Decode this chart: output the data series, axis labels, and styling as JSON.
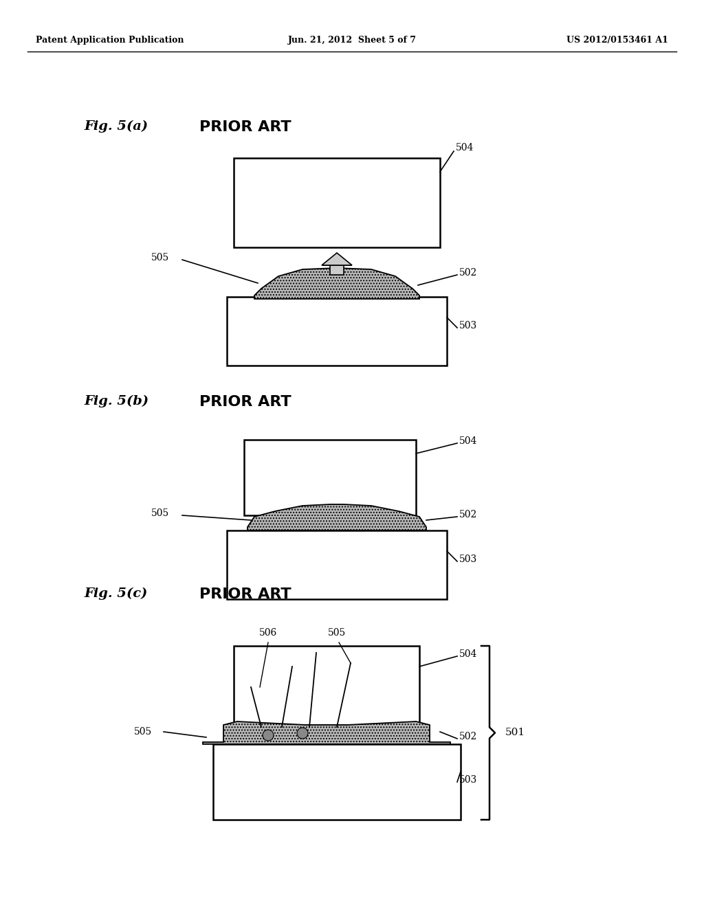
{
  "header_left": "Patent Application Publication",
  "header_center": "Jun. 21, 2012  Sheet 5 of 7",
  "header_right": "US 2012/0153461 A1",
  "fig_a_label": "Fig. 5(a)",
  "fig_b_label": "Fig. 5(b)",
  "fig_c_label": "Fig. 5(c)",
  "prior_art": "PRIOR ART",
  "bg_color": "#ffffff",
  "line_color": "#000000"
}
